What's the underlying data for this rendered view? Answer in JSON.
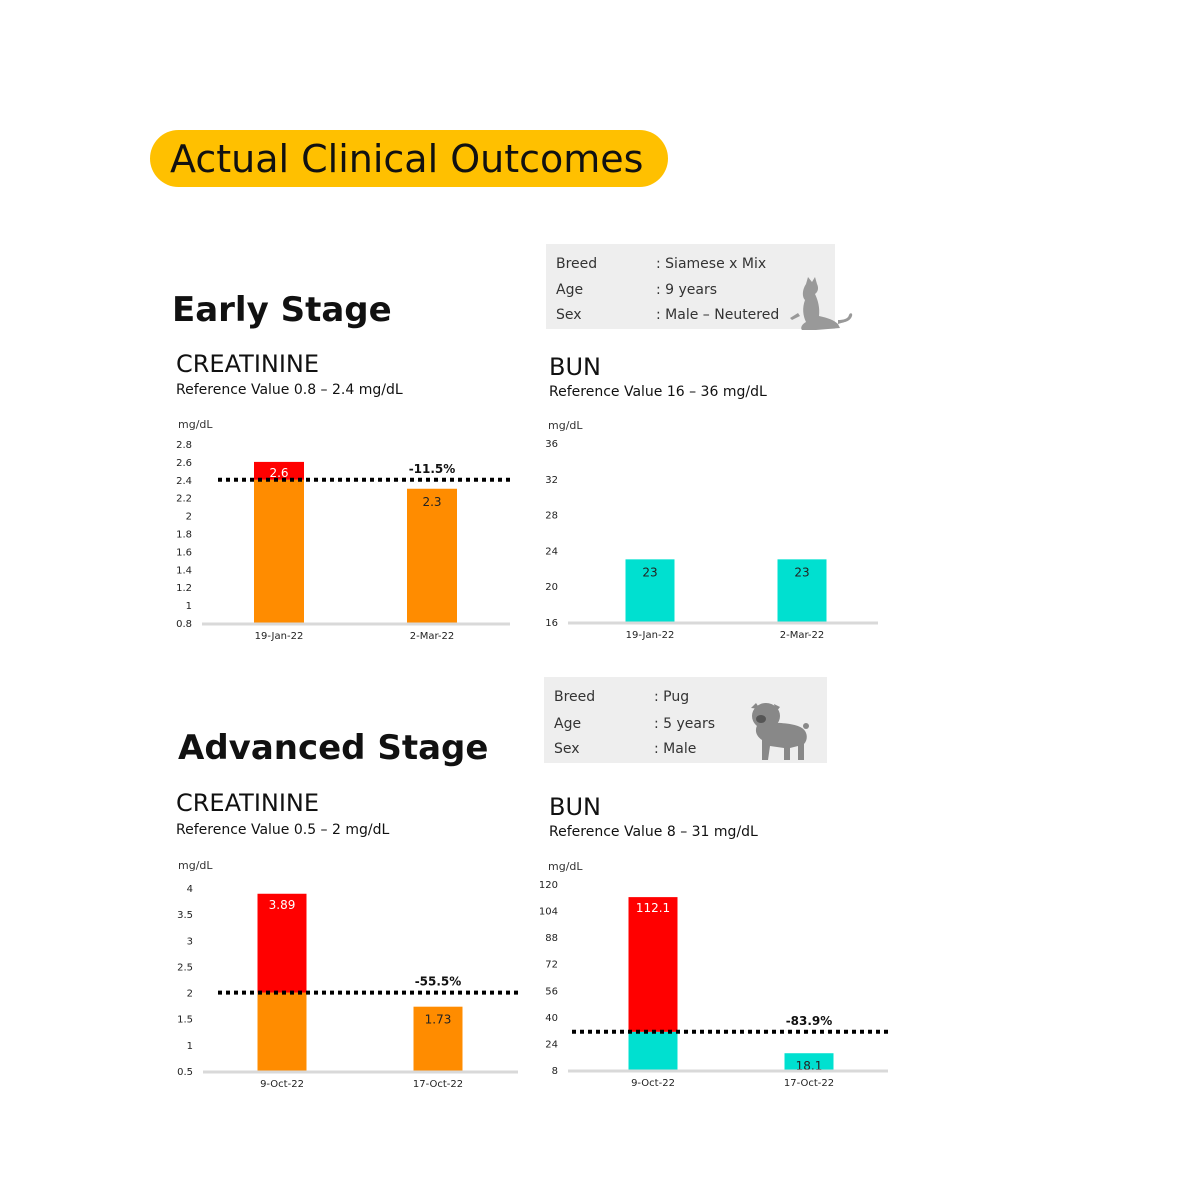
{
  "header": {
    "title": "Actual Clinical Outcomes"
  },
  "early": {
    "stage_label": "Early Stage",
    "patient": {
      "breed_label": "Breed",
      "breed": ": Siamese x Mix",
      "age_label": "Age",
      "age": ": 9 years",
      "sex_label": "Sex",
      "sex": ": Male – Neutered",
      "icon": "cat-icon"
    },
    "creatinine": {
      "title": "CREATININE",
      "reference": "Reference Value  0.8 – 2.4 mg/dL"
    },
    "bun": {
      "title": "BUN",
      "reference": "Reference Value  16 – 36 mg/dL"
    }
  },
  "advanced": {
    "stage_label": "Advanced Stage",
    "patient": {
      "breed_label": "Breed",
      "breed": ": Pug",
      "age_label": "Age",
      "age": ": 5 years",
      "sex_label": "Sex",
      "sex": ": Male",
      "icon": "pug-dog-icon"
    },
    "creatinine": {
      "title": "CREATININE",
      "reference": "Reference Value  0.5 – 2 mg/dL"
    },
    "bun": {
      "title": "BUN",
      "reference": "Reference Value  8 – 31 mg/dL"
    }
  },
  "colors": {
    "normal": "#ff8c00",
    "bun_normal": "#00e0d0",
    "over_limit": "#ff0000",
    "axis": "#d9d9d9",
    "threshold": "#000000"
  },
  "chart_data": [
    {
      "id": "early-creatinine",
      "type": "bar",
      "unit": "mg/dL",
      "categories": [
        "19-Jan-22",
        "2-Mar-22"
      ],
      "values": [
        2.6,
        2.3
      ],
      "value_labels": [
        "2.6",
        "2.3"
      ],
      "ylim": [
        0.8,
        2.8
      ],
      "yticks": [
        "0.8",
        "1",
        "1.2",
        "1.4",
        "1.6",
        "1.8",
        "2",
        "2.2",
        "2.4",
        "2.6",
        "2.8"
      ],
      "threshold": 2.4,
      "change_label": "-11.5%",
      "base_color": "#ff8c00"
    },
    {
      "id": "early-bun",
      "type": "bar",
      "unit": "mg/dL",
      "categories": [
        "19-Jan-22",
        "2-Mar-22"
      ],
      "values": [
        23,
        23
      ],
      "value_labels": [
        "23",
        "23"
      ],
      "ylim": [
        16,
        36
      ],
      "yticks": [
        "16",
        "20",
        "24",
        "28",
        "32",
        "36"
      ],
      "threshold": null,
      "change_label": "",
      "base_color": "#00e0d0"
    },
    {
      "id": "advanced-creatinine",
      "type": "bar",
      "unit": "mg/dL",
      "categories": [
        "9-Oct-22",
        "17-Oct-22"
      ],
      "values": [
        3.89,
        1.73
      ],
      "value_labels": [
        "3.89",
        "1.73"
      ],
      "ylim": [
        0.5,
        4
      ],
      "yticks": [
        "0.5",
        "1",
        "1.5",
        "2",
        "2.5",
        "3",
        "3.5",
        "4"
      ],
      "threshold": 2,
      "change_label": "-55.5%",
      "base_color": "#ff8c00"
    },
    {
      "id": "advanced-bun",
      "type": "bar",
      "unit": "mg/dL",
      "categories": [
        "9-Oct-22",
        "17-Oct-22"
      ],
      "values": [
        112.1,
        18.1
      ],
      "value_labels": [
        "112.1",
        "18.1"
      ],
      "ylim": [
        8,
        120
      ],
      "yticks": [
        "8",
        "24",
        "40",
        "56",
        "72",
        "88",
        "104",
        "120"
      ],
      "threshold": 31,
      "change_label": "-83.9%",
      "base_color": "#00e0d0"
    }
  ]
}
